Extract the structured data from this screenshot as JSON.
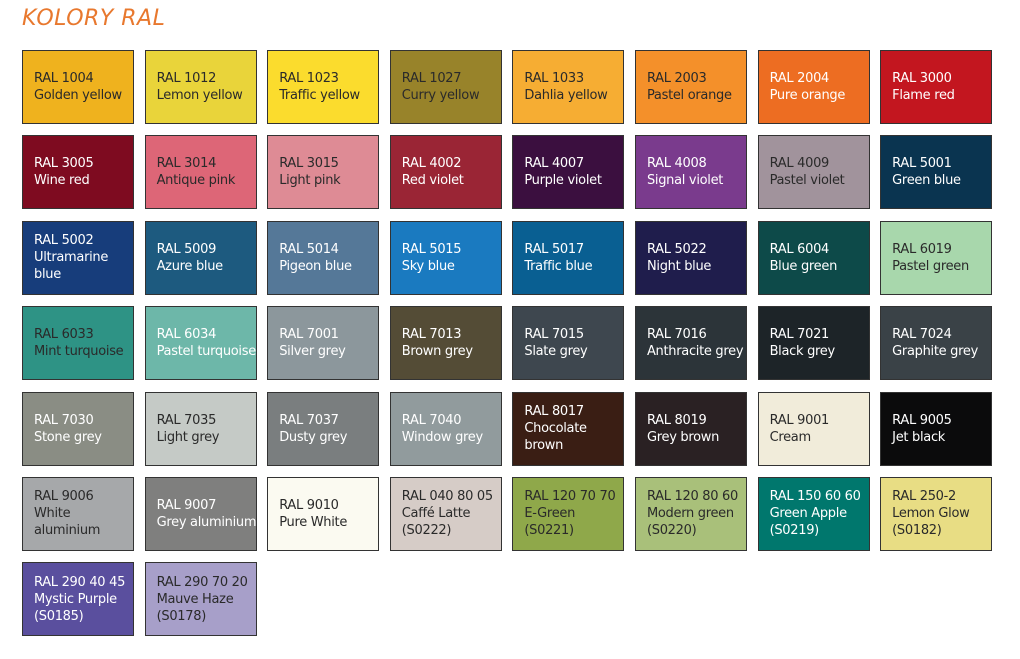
{
  "title": "KOLORY RAL",
  "swatches": [
    {
      "code": "RAL 1004",
      "lines": [
        "Golden yellow"
      ],
      "color": "#efb21e",
      "text": "dark"
    },
    {
      "code": "RAL 1012",
      "lines": [
        "Lemon yellow"
      ],
      "color": "#e9d43a",
      "text": "dark"
    },
    {
      "code": "RAL 1023",
      "lines": [
        "Traffic yellow"
      ],
      "color": "#fbdc2d",
      "text": "dark"
    },
    {
      "code": "RAL 1027",
      "lines": [
        "Curry yellow"
      ],
      "color": "#98832a",
      "text": "dark"
    },
    {
      "code": "RAL 1033",
      "lines": [
        "Dahlia yellow"
      ],
      "color": "#f6ad33",
      "text": "dark"
    },
    {
      "code": "RAL 2003",
      "lines": [
        "Pastel orange"
      ],
      "color": "#f4902a",
      "text": "dark"
    },
    {
      "code": "RAL 2004",
      "lines": [
        "Pure orange"
      ],
      "color": "#ed6d22",
      "text": "light"
    },
    {
      "code": "RAL 3000",
      "lines": [
        "Flame red"
      ],
      "color": "#c3161f",
      "text": "light"
    },
    {
      "code": "RAL 3005",
      "lines": [
        "Wine red"
      ],
      "color": "#7e0b20",
      "text": "light"
    },
    {
      "code": "RAL 3014",
      "lines": [
        "Antique pink"
      ],
      "color": "#dd6677",
      "text": "dark"
    },
    {
      "code": "RAL 3015",
      "lines": [
        "Light pink"
      ],
      "color": "#de8b95",
      "text": "dark"
    },
    {
      "code": "RAL 4002",
      "lines": [
        "Red violet"
      ],
      "color": "#9a2535",
      "text": "light"
    },
    {
      "code": "RAL 4007",
      "lines": [
        "Purple violet"
      ],
      "color": "#3b0f3f",
      "text": "light"
    },
    {
      "code": "RAL 4008",
      "lines": [
        "Signal violet"
      ],
      "color": "#7a3b8d",
      "text": "light"
    },
    {
      "code": "RAL 4009",
      "lines": [
        "Pastel violet"
      ],
      "color": "#a1939c",
      "text": "dark"
    },
    {
      "code": "RAL 5001",
      "lines": [
        "Green blue"
      ],
      "color": "#0a3450",
      "text": "light"
    },
    {
      "code": "RAL 5002",
      "lines": [
        "Ultramarine",
        "blue"
      ],
      "color": "#173d7b",
      "text": "light"
    },
    {
      "code": "RAL 5009",
      "lines": [
        "Azure blue"
      ],
      "color": "#1d5a7f",
      "text": "light"
    },
    {
      "code": "RAL 5014",
      "lines": [
        "Pigeon blue"
      ],
      "color": "#557898",
      "text": "light"
    },
    {
      "code": "RAL 5015",
      "lines": [
        "Sky blue"
      ],
      "color": "#1a7ac0",
      "text": "light"
    },
    {
      "code": "RAL 5017",
      "lines": [
        "Traffic blue"
      ],
      "color": "#095f92",
      "text": "light"
    },
    {
      "code": "RAL 5022",
      "lines": [
        "Night blue"
      ],
      "color": "#1f1d4c",
      "text": "light"
    },
    {
      "code": "RAL 6004",
      "lines": [
        "Blue green"
      ],
      "color": "#0d4a49",
      "text": "light"
    },
    {
      "code": "RAL 6019",
      "lines": [
        "Pastel green"
      ],
      "color": "#a8d7ac",
      "text": "dark"
    },
    {
      "code": "RAL 6033",
      "lines": [
        "Mint turquoise"
      ],
      "color": "#2e9385",
      "text": "dark"
    },
    {
      "code": "RAL 6034",
      "lines": [
        "Pastel turquoise"
      ],
      "color": "#6db7a9",
      "text": "light"
    },
    {
      "code": "RAL 7001",
      "lines": [
        "Silver grey"
      ],
      "color": "#8c979c",
      "text": "light"
    },
    {
      "code": "RAL 7013",
      "lines": [
        "Brown grey"
      ],
      "color": "#544c36",
      "text": "light"
    },
    {
      "code": "RAL 7015",
      "lines": [
        "Slate grey"
      ],
      "color": "#3e474f",
      "text": "light"
    },
    {
      "code": "RAL 7016",
      "lines": [
        "Anthracite grey"
      ],
      "color": "#2c3439",
      "text": "light"
    },
    {
      "code": "RAL 7021",
      "lines": [
        "Black grey"
      ],
      "color": "#1d2428",
      "text": "light"
    },
    {
      "code": "RAL 7024",
      "lines": [
        "Graphite grey"
      ],
      "color": "#3a4247",
      "text": "light"
    },
    {
      "code": "RAL 7030",
      "lines": [
        "Stone grey"
      ],
      "color": "#8a8d84",
      "text": "light"
    },
    {
      "code": "RAL 7035",
      "lines": [
        "Light grey"
      ],
      "color": "#c5cac6",
      "text": "dark"
    },
    {
      "code": "RAL 7037",
      "lines": [
        "Dusty grey"
      ],
      "color": "#7a7e7f",
      "text": "light"
    },
    {
      "code": "RAL 7040",
      "lines": [
        "Window grey"
      ],
      "color": "#919b9d",
      "text": "light"
    },
    {
      "code": "RAL 8017",
      "lines": [
        "Chocolate",
        "brown"
      ],
      "color": "#3a1e14",
      "text": "light"
    },
    {
      "code": "RAL 8019",
      "lines": [
        "Grey brown"
      ],
      "color": "#2a2123",
      "text": "light"
    },
    {
      "code": "RAL 9001",
      "lines": [
        "Cream"
      ],
      "color": "#f1ecda",
      "text": "dark"
    },
    {
      "code": "RAL 9005",
      "lines": [
        "Jet black"
      ],
      "color": "#0b0b0c",
      "text": "light"
    },
    {
      "code": "RAL 9006",
      "lines": [
        "White",
        "aluminium"
      ],
      "color": "#a6a8aa",
      "text": "dark"
    },
    {
      "code": "RAL 9007",
      "lines": [
        "Grey aluminium"
      ],
      "color": "#7f7f7e",
      "text": "light"
    },
    {
      "code": "RAL 9010",
      "lines": [
        "Pure White"
      ],
      "color": "#fbfaf1",
      "text": "dark"
    },
    {
      "code": "RAL 040 80 05",
      "lines": [
        "Caffé Latte",
        "(S0222)"
      ],
      "color": "#d6ccc7",
      "text": "dark"
    },
    {
      "code": "RAL 120 70 70",
      "lines": [
        "E-Green",
        "(S0221)"
      ],
      "color": "#8fa84a",
      "text": "dark"
    },
    {
      "code": "RAL 120 80 60",
      "lines": [
        "Modern green",
        "(S0220)"
      ],
      "color": "#a9c07a",
      "text": "dark"
    },
    {
      "code": "RAL 150 60 60",
      "lines": [
        "Green Apple",
        "(S0219)"
      ],
      "color": "#00776d",
      "text": "light"
    },
    {
      "code": "RAL 250-2",
      "lines": [
        "Lemon Glow",
        "(S0182)"
      ],
      "color": "#e8dd84",
      "text": "dark"
    },
    {
      "code": "RAL 290 40 45",
      "lines": [
        "Mystic Purple",
        "(S0185)"
      ],
      "color": "#5a4f9e",
      "text": "light"
    },
    {
      "code": "RAL 290 70 20",
      "lines": [
        "Mauve Haze",
        "(S0178)"
      ],
      "color": "#a79fc9",
      "text": "dark"
    }
  ]
}
